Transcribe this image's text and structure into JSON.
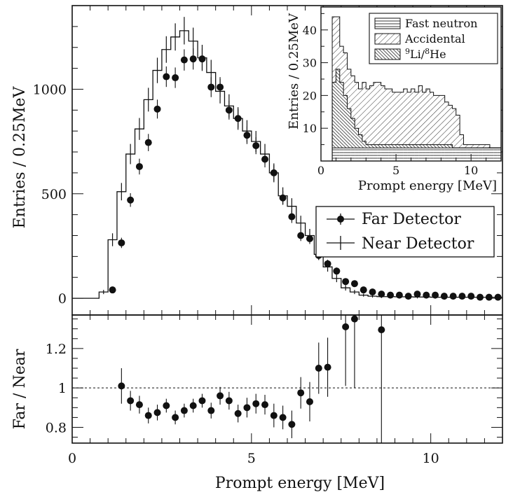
{
  "chart_data": [
    {
      "type": "line",
      "panel": "spectrum",
      "xlabel": "",
      "ylabel": "Entries / 0.25MeV",
      "xlim": [
        0,
        12
      ],
      "ylim": [
        -80,
        1400
      ],
      "yticks": [
        0,
        500,
        1000
      ],
      "ytick_labels": [
        "0",
        "500",
        "1000"
      ],
      "legend_position": "middle-right",
      "series": [
        {
          "name": "Far Detector",
          "style": "points",
          "x": [
            1.0,
            1.25,
            1.5,
            1.75,
            2.0,
            2.25,
            2.5,
            2.75,
            3.0,
            3.25,
            3.5,
            3.75,
            4.0,
            4.25,
            4.5,
            4.75,
            5.0,
            5.25,
            5.5,
            5.75,
            6.0,
            6.25,
            6.5,
            6.75,
            7.0,
            7.25,
            7.5,
            7.75,
            8.0,
            8.25,
            8.5,
            8.75,
            9.0,
            9.25,
            9.5,
            9.75,
            10.0,
            10.25,
            10.5,
            10.75,
            11.0,
            11.25,
            11.5,
            11.75
          ],
          "y": [
            40,
            265,
            470,
            630,
            745,
            905,
            1060,
            1055,
            1140,
            1145,
            1145,
            1010,
            1010,
            900,
            860,
            780,
            730,
            665,
            600,
            480,
            390,
            300,
            285,
            205,
            165,
            130,
            80,
            70,
            40,
            30,
            20,
            15,
            15,
            10,
            20,
            15,
            15,
            10,
            10,
            10,
            10,
            5,
            5,
            5
          ]
        },
        {
          "name": "Near Detector",
          "style": "histogram",
          "x": [
            0.75,
            1.0,
            1.25,
            1.5,
            1.75,
            2.0,
            2.25,
            2.5,
            2.75,
            3.0,
            3.25,
            3.5,
            3.75,
            4.0,
            4.25,
            4.5,
            4.75,
            5.0,
            5.25,
            5.5,
            5.75,
            6.0,
            6.25,
            6.5,
            6.75,
            7.0,
            7.25,
            7.5,
            7.75,
            8.0,
            8.25,
            8.5,
            8.75,
            9.0,
            9.25,
            9.5,
            9.75,
            10.0,
            10.25,
            10.5,
            10.75,
            11.0,
            11.25,
            11.5,
            11.75
          ],
          "y": [
            30,
            280,
            510,
            690,
            810,
            950,
            1090,
            1190,
            1250,
            1280,
            1230,
            1150,
            1080,
            990,
            920,
            860,
            800,
            750,
            690,
            600,
            490,
            440,
            360,
            300,
            210,
            150,
            95,
            50,
            30,
            15,
            10,
            8,
            8,
            7,
            7,
            6,
            6,
            5,
            5,
            5,
            5,
            5,
            5,
            5,
            5
          ]
        }
      ]
    },
    {
      "type": "scatter",
      "panel": "ratio",
      "xlabel": "Prompt energy [MeV]",
      "ylabel": "Far / Near",
      "xlim": [
        0,
        12
      ],
      "ylim": [
        0.72,
        1.37
      ],
      "xticks": [
        0,
        5,
        10
      ],
      "xtick_labels": [
        "0",
        "5",
        "10"
      ],
      "yticks": [
        0.8,
        1.0,
        1.2
      ],
      "ytick_labels": [
        "0.8",
        "1",
        "1.2"
      ],
      "reference_line": 1.0,
      "series": [
        {
          "name": "",
          "x": [
            1.25,
            1.5,
            1.75,
            2.0,
            2.25,
            2.5,
            2.75,
            3.0,
            3.25,
            3.5,
            3.75,
            4.0,
            4.25,
            4.5,
            4.75,
            5.0,
            5.25,
            5.5,
            5.75,
            6.0,
            6.25,
            6.5,
            6.75,
            7.0,
            7.5,
            7.75,
            8.5
          ],
          "y": [
            1.01,
            0.935,
            0.915,
            0.86,
            0.875,
            0.91,
            0.85,
            0.885,
            0.91,
            0.935,
            0.885,
            0.96,
            0.935,
            0.87,
            0.9,
            0.92,
            0.915,
            0.86,
            0.85,
            0.815,
            0.975,
            0.93,
            1.1,
            1.105,
            1.31,
            1.35,
            1.295
          ],
          "err": [
            0.09,
            0.05,
            0.045,
            0.04,
            0.04,
            0.035,
            0.035,
            0.035,
            0.035,
            0.035,
            0.04,
            0.045,
            0.045,
            0.045,
            0.05,
            0.05,
            0.05,
            0.06,
            0.06,
            0.07,
            0.08,
            0.1,
            0.13,
            0.15,
            0.3,
            0.35,
            0.6
          ]
        }
      ]
    },
    {
      "type": "bar",
      "panel": "inset-backgrounds",
      "stacked": true,
      "xlabel": "Prompt energy [MeV]",
      "ylabel": "Entries / 0.25MeV",
      "xlim": [
        0,
        12
      ],
      "ylim": [
        0,
        47
      ],
      "xticks": [
        0,
        5,
        10
      ],
      "xtick_labels": [
        "0",
        "5",
        "10"
      ],
      "yticks": [
        10,
        20,
        30,
        40
      ],
      "ytick_labels": [
        "10",
        "20",
        "30",
        "40"
      ],
      "legend_position": "top-right",
      "bin_width": 0.25,
      "x": [
        0.75,
        1.0,
        1.25,
        1.5,
        1.75,
        2.0,
        2.25,
        2.5,
        2.75,
        3.0,
        3.25,
        3.5,
        3.75,
        4.0,
        4.25,
        4.5,
        4.75,
        5.0,
        5.25,
        5.5,
        5.75,
        6.0,
        6.25,
        6.5,
        6.75,
        7.0,
        7.25,
        7.5,
        7.75,
        8.0,
        8.25,
        8.5,
        8.75,
        9.0,
        9.25,
        9.5,
        9.75,
        10.0,
        10.25,
        10.5,
        10.75,
        11.0,
        11.25,
        11.5,
        11.75
      ],
      "series": [
        {
          "name": "Fast neutron",
          "pattern": "horizontal",
          "values": [
            4,
            4,
            4,
            4,
            4,
            4,
            4,
            4,
            4,
            4,
            4,
            4,
            4,
            4,
            4,
            4,
            4,
            4,
            4,
            4,
            4,
            4,
            4,
            4,
            4,
            4,
            4,
            4,
            4,
            4,
            4,
            4,
            4,
            4,
            4,
            4,
            4,
            4,
            4,
            4,
            4,
            4,
            4,
            4,
            4
          ]
        },
        {
          "name": "9Li/8He",
          "pattern": "dense-diagonal",
          "values": [
            20,
            24,
            20,
            16,
            12,
            9,
            6,
            4,
            2,
            1,
            1,
            1,
            1,
            1,
            1,
            1,
            1,
            1,
            1,
            1,
            1,
            1,
            1,
            1,
            1,
            1,
            1,
            1,
            1,
            1,
            1,
            1,
            0,
            0,
            0,
            0,
            0,
            0,
            0,
            0,
            0,
            0,
            0,
            0,
            0
          ]
        },
        {
          "name": "Accidental",
          "pattern": "diagonal",
          "values": [
            20,
            16,
            11,
            13,
            12,
            13,
            14,
            14,
            18,
            17,
            18,
            19,
            19,
            18,
            17,
            17,
            16,
            16,
            16,
            17,
            16,
            17,
            16,
            18,
            16,
            17,
            16,
            15,
            15,
            15,
            13,
            12,
            12,
            10,
            4,
            1,
            1,
            1,
            1,
            1,
            1,
            1,
            0,
            0,
            0
          ]
        }
      ]
    }
  ],
  "inset_legend_labels": {
    "fast": "Fast neutron",
    "accidental": "Accidental",
    "li_he_parts": [
      "9",
      "Li/",
      "8",
      "He"
    ]
  },
  "main_legend_labels": {
    "far": "Far Detector",
    "near": "Near Detector"
  }
}
